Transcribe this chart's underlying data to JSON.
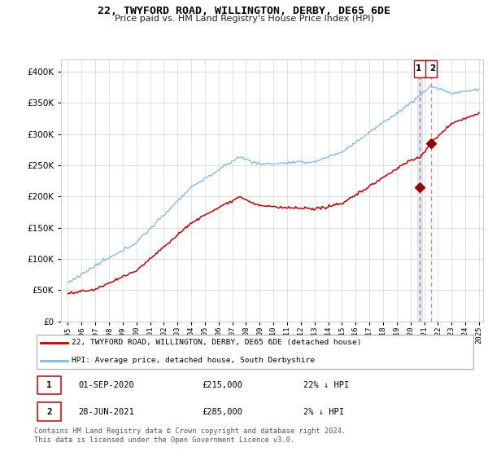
{
  "title": "22, TWYFORD ROAD, WILLINGTON, DERBY, DE65 6DE",
  "subtitle": "Price paid vs. HM Land Registry's House Price Index (HPI)",
  "legend_label1": "22, TWYFORD ROAD, WILLINGTON, DERBY, DE65 6DE (detached house)",
  "legend_label2": "HPI: Average price, detached house, South Derbyshire",
  "annotation1_date": "01-SEP-2020",
  "annotation1_price": "£215,000",
  "annotation1_hpi": "22% ↓ HPI",
  "annotation2_date": "28-JUN-2021",
  "annotation2_price": "£285,000",
  "annotation2_hpi": "2% ↓ HPI",
  "footer": "Contains HM Land Registry data © Crown copyright and database right 2024.\nThis data is licensed under the Open Government Licence v3.0.",
  "sale1_year": 2020.67,
  "sale1_price": 215000,
  "sale2_year": 2021.5,
  "sale2_price": 285000,
  "color_hpi": "#7ab8e8",
  "color_price": "#cc0000",
  "color_vline1": "#aaccee",
  "color_vline2": "#dd6666",
  "ylim_min": 0,
  "ylim_max": 420000,
  "yticks": [
    0,
    50000,
    100000,
    150000,
    200000,
    250000,
    300000,
    350000,
    400000
  ],
  "start_year": 1995,
  "end_year": 2025
}
